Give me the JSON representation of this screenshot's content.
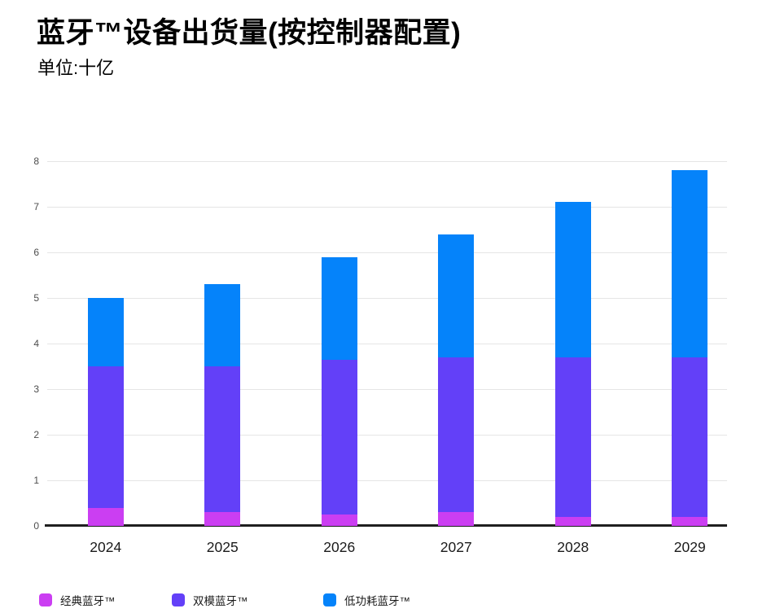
{
  "header": {
    "title": "蓝牙™设备出货量(按控制器配置)",
    "subtitle": "单位:十亿"
  },
  "chart_data": {
    "type": "bar",
    "stacked": true,
    "title": "蓝牙™设备出货量(按控制器配置)",
    "unit_label": "单位:十亿",
    "categories": [
      "2024",
      "2025",
      "2026",
      "2027",
      "2028",
      "2029"
    ],
    "series": [
      {
        "name": "经典蓝牙™",
        "color": "#cb3ef2",
        "values": [
          0.4,
          0.3,
          0.25,
          0.3,
          0.2,
          0.2
        ]
      },
      {
        "name": "双模蓝牙™",
        "color": "#6340f8",
        "values": [
          3.1,
          3.2,
          3.4,
          3.4,
          3.5,
          3.5
        ]
      },
      {
        "name": "低功耗蓝牙™",
        "color": "#0583fa",
        "values": [
          1.5,
          1.8,
          2.25,
          2.7,
          3.4,
          4.1
        ]
      }
    ],
    "totals": [
      5.0,
      5.3,
      5.9,
      6.4,
      7.1,
      7.8
    ],
    "xlabel": "",
    "ylabel": "",
    "ylim": [
      0,
      8
    ],
    "yticks": [
      0,
      1,
      2,
      3,
      4,
      5,
      6,
      7,
      8
    ],
    "grid": true,
    "legend_position": "bottom"
  },
  "colors": {
    "axis": "#1f1f1f",
    "gridline": "#e5e5e5",
    "ytick_label": "#4d4d4d",
    "xtick_label": "#1a1a1a"
  }
}
